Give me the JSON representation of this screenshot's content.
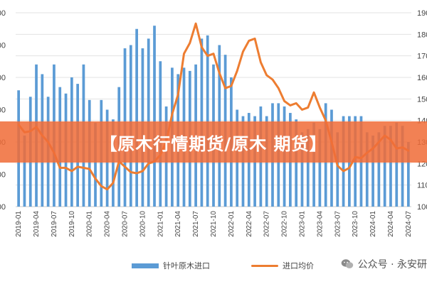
{
  "chart_data": {
    "type": "bar+line",
    "title": "",
    "months": [
      "2019-01",
      "2019-02",
      "2019-03",
      "2019-04",
      "2019-05",
      "2019-06",
      "2019-07",
      "2019-08",
      "2019-09",
      "2019-10",
      "2019-11",
      "2019-12",
      "2020-01",
      "2020-02",
      "2020-03",
      "2020-04",
      "2020-05",
      "2020-06",
      "2020-07",
      "2020-08",
      "2020-09",
      "2020-10",
      "2020-11",
      "2020-12",
      "2021-01",
      "2021-02",
      "2021-03",
      "2021-04",
      "2021-05",
      "2021-06",
      "2021-07",
      "2021-08",
      "2021-09",
      "2021-10",
      "2021-11",
      "2021-12",
      "2022-01",
      "2022-02",
      "2022-03",
      "2022-04",
      "2022-05",
      "2022-06",
      "2022-07",
      "2022-08",
      "2022-09",
      "2022-10",
      "2022-11",
      "2022-12",
      "2023-01",
      "2023-02",
      "2023-03",
      "2023-04",
      "2023-05",
      "2023-06",
      "2023-07",
      "2023-08",
      "2023-09",
      "2023-10",
      "2023-11",
      "2023-12",
      "2024-01",
      "2024-02",
      "2024-03",
      "2024-04",
      "2024-05",
      "2024-06",
      "2024-07"
    ],
    "x_tick_labels": [
      "2019-01",
      "2019-04",
      "2019-07",
      "2019-10",
      "2020-01",
      "2020-04",
      "2020-07",
      "2020-10",
      "2021-01",
      "2021-04",
      "2021-07",
      "2021-10",
      "2022-01",
      "2022-04",
      "2022-07",
      "2022-10",
      "2023-01",
      "2023-04",
      "2023-07",
      "2023-10",
      "2024-01",
      "2024-04",
      "2024-07"
    ],
    "left_axis_tick_labels": [
      "00",
      "00",
      "00",
      "00",
      "00",
      "00",
      "00"
    ],
    "right_axis_tick_labels": [
      "190",
      "180",
      "170",
      "160",
      "150",
      "140",
      "130",
      "120",
      "110",
      "100"
    ],
    "right_axis_range": [
      100,
      190
    ],
    "left_axis_range_index": [
      0,
      6
    ],
    "series": [
      {
        "name": "针叶原木进口",
        "type": "bar",
        "axis": "left",
        "color": "#5b9bd5",
        "values": [
          3.6,
          2.2,
          3.4,
          4.4,
          4.1,
          3.4,
          4.4,
          3.7,
          3.5,
          4.0,
          3.8,
          4.4,
          3.3,
          2.6,
          3.3,
          3.0,
          2.7,
          3.7,
          4.9,
          5.0,
          5.5,
          4.9,
          5.2,
          5.6,
          4.5,
          3.1,
          4.3,
          4.1,
          4.3,
          4.2,
          4.4,
          5.2,
          5.3,
          4.4,
          5.0,
          4.7,
          4.0,
          3.0,
          2.8,
          2.9,
          2.8,
          3.1,
          2.8,
          3.2,
          3.2,
          3.1,
          2.9,
          2.7,
          2.3,
          2.4,
          2.6,
          2.4,
          3.2,
          3.0,
          2.3,
          2.8,
          2.8,
          2.8,
          2.8,
          2.3,
          2.2,
          2.3,
          2.5,
          2.5,
          2.6,
          2.5,
          2.0
        ]
      },
      {
        "name": "进口均价",
        "type": "line",
        "axis": "right",
        "color": "#ed7d31",
        "values": [
          138,
          134.5,
          135,
          137,
          133,
          130,
          125,
          118,
          118,
          116.5,
          118.5,
          118,
          117.5,
          113,
          109.5,
          108,
          111,
          121,
          118.5,
          116,
          115.5,
          116.5,
          120,
          121,
          124,
          130,
          143,
          152,
          171,
          176,
          185,
          174,
          170,
          171,
          162,
          155,
          156,
          163,
          172,
          177,
          178,
          167,
          161,
          159,
          155,
          149,
          147,
          148,
          145,
          146,
          153,
          146,
          140,
          130,
          119,
          116.5,
          118,
          123,
          122.5,
          125,
          127,
          130,
          133,
          131,
          127,
          127.5,
          126
        ]
      }
    ],
    "grid": true,
    "legend_position": "bottom"
  },
  "overlay": {
    "banner_text": "【原木行情期货/原木 期货】"
  },
  "legend": {
    "bar_label": "针叶原木进口",
    "line_label": "进口均价"
  },
  "watermark": {
    "text": "公众号 · 永安研",
    "icon": "wechat-icon"
  },
  "colors": {
    "bar": "#5b9bd5",
    "line": "#ed7d31",
    "banner": "#f06c38"
  }
}
